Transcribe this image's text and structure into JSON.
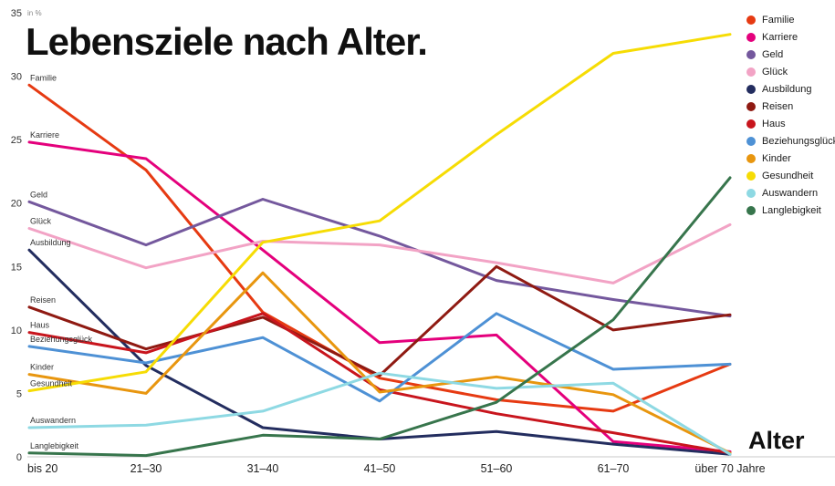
{
  "title": "Lebensziele nach Alter.",
  "y_axis": {
    "unit": "in %",
    "ticks": [
      0,
      5,
      10,
      15,
      20,
      25,
      30,
      35
    ],
    "max": 35
  },
  "x_axis": {
    "label": "Alter",
    "categories": [
      "bis 20",
      "21–30",
      "31–40",
      "41–50",
      "51–60",
      "61–70",
      "über 70 Jahre"
    ]
  },
  "chart_data": {
    "type": "line",
    "title": "Lebensziele nach Alter.",
    "xlabel": "Alter",
    "ylabel": "in %",
    "ylim": [
      0,
      35
    ],
    "grid": false,
    "legend_position": "top-right",
    "categories": [
      "bis 20",
      "21–30",
      "31–40",
      "41–50",
      "51–60",
      "61–70",
      "über 70 Jahre"
    ],
    "series": [
      {
        "name": "Familie",
        "color": "#e63a12",
        "values": [
          29.3,
          22.6,
          11.4,
          6.2,
          4.5,
          3.6,
          7.3
        ]
      },
      {
        "name": "Karriere",
        "color": "#e4007c",
        "values": [
          24.8,
          23.5,
          16.3,
          9.0,
          9.6,
          1.2,
          0.4
        ]
      },
      {
        "name": "Geld",
        "color": "#74589d",
        "values": [
          20.1,
          16.7,
          20.3,
          17.4,
          13.9,
          12.4,
          11.1
        ]
      },
      {
        "name": "Glück",
        "color": "#f2a3c5",
        "values": [
          18.0,
          14.9,
          17.0,
          16.7,
          15.3,
          13.7,
          18.3
        ]
      },
      {
        "name": "Ausbildung",
        "color": "#232d5f",
        "values": [
          16.3,
          7.2,
          2.3,
          1.4,
          2.0,
          1.0,
          0.2
        ]
      },
      {
        "name": "Reisen",
        "color": "#8f1a12",
        "values": [
          11.8,
          8.5,
          11.0,
          6.4,
          15.0,
          10.0,
          11.2
        ]
      },
      {
        "name": "Haus",
        "color": "#c8151d",
        "values": [
          9.8,
          8.2,
          11.3,
          5.3,
          3.4,
          1.9,
          0.3
        ]
      },
      {
        "name": "Beziehungsglück",
        "color": "#4e91d5",
        "values": [
          8.7,
          7.4,
          9.4,
          4.4,
          11.3,
          6.9,
          7.3
        ]
      },
      {
        "name": "Kinder",
        "color": "#e8960f",
        "values": [
          6.5,
          5.0,
          14.5,
          5.1,
          6.3,
          4.9,
          0.3
        ]
      },
      {
        "name": "Gesundheit",
        "color": "#f6dc04",
        "values": [
          5.2,
          6.7,
          16.9,
          18.6,
          25.4,
          31.8,
          33.3
        ]
      },
      {
        "name": "Auswandern",
        "color": "#8ed9e3",
        "values": [
          2.3,
          2.5,
          3.6,
          6.6,
          5.4,
          5.8,
          0.2
        ]
      },
      {
        "name": "Langlebigkeit",
        "color": "#37754c",
        "values": [
          0.3,
          0.1,
          1.7,
          1.4,
          4.3,
          10.8,
          22.0
        ]
      }
    ]
  }
}
